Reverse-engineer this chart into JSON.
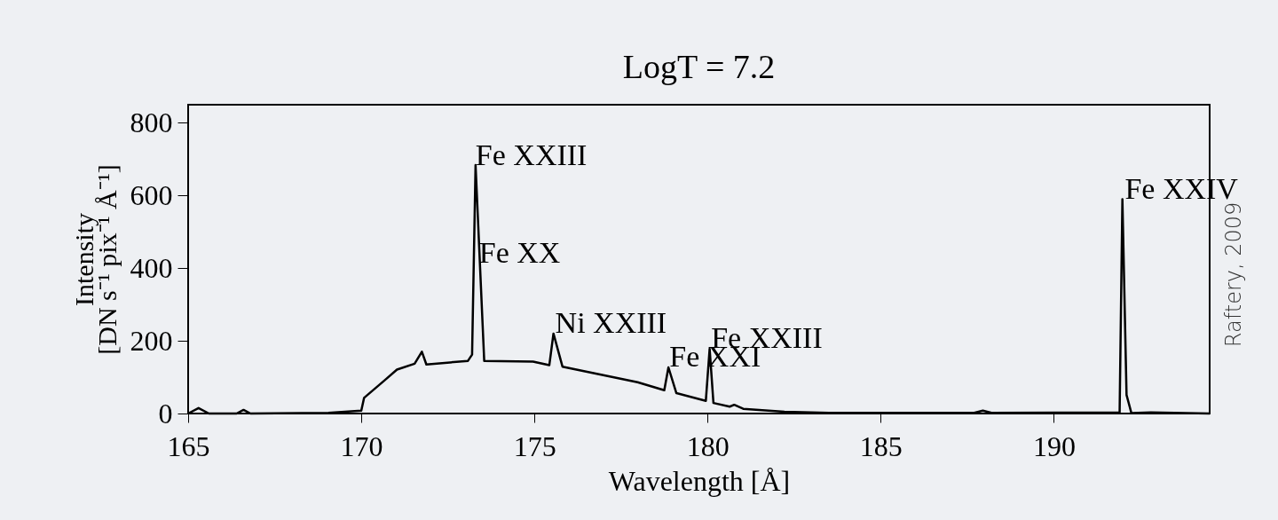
{
  "chart_data": {
    "type": "line",
    "title": "LogT = 7.2",
    "xlabel": "Wavelength [Å]",
    "ylabel": "Intensity\n[DN s⁻¹ pix⁻¹ Å⁻¹]",
    "xlim": [
      165,
      194.5
    ],
    "ylim": [
      0,
      850
    ],
    "xticks": [
      165,
      170,
      175,
      180,
      185,
      190
    ],
    "yticks": [
      0,
      200,
      400,
      600,
      800
    ],
    "x": [
      165,
      165.3,
      165.6,
      166.4,
      166.6,
      166.8,
      169.05,
      170.0,
      170.08,
      170.68,
      171.03,
      171.54,
      171.75,
      171.88,
      173.08,
      173.2,
      173.3,
      173.55,
      174.96,
      175.43,
      175.55,
      175.81,
      177.98,
      178.75,
      178.87,
      179.1,
      179.95,
      180.06,
      180.17,
      180.64,
      180.77,
      181.03,
      182.22,
      183.5,
      187.7,
      187.95,
      188.2,
      191.9,
      191.98,
      192.1,
      192.24,
      192.8,
      194.5
    ],
    "series": [
      {
        "color": "#000000",
        "values": [
          0,
          15,
          0,
          0,
          10,
          0,
          2,
          8,
          43,
          92,
          121,
          137,
          170,
          135,
          145,
          162,
          684,
          145,
          143,
          133,
          220,
          129,
          86,
          64,
          127,
          56,
          35,
          178,
          29,
          19,
          24,
          13,
          5,
          2,
          2,
          8,
          2,
          3,
          590,
          51,
          1,
          3,
          0
        ]
      }
    ],
    "annotations": [
      {
        "text": "Fe XXIII",
        "x": 173.3,
        "y": 684
      },
      {
        "text": "Fe XX",
        "x": 173.4,
        "y": 416
      },
      {
        "text": "Ni XXIII",
        "x": 175.6,
        "y": 223
      },
      {
        "text": "Fe XXI",
        "x": 178.9,
        "y": 130
      },
      {
        "text": "Fe XXIII",
        "x": 180.1,
        "y": 181
      },
      {
        "text": "Fe XXIV",
        "x": 192.05,
        "y": 590
      },
      "Raftery, 2009"
    ]
  }
}
